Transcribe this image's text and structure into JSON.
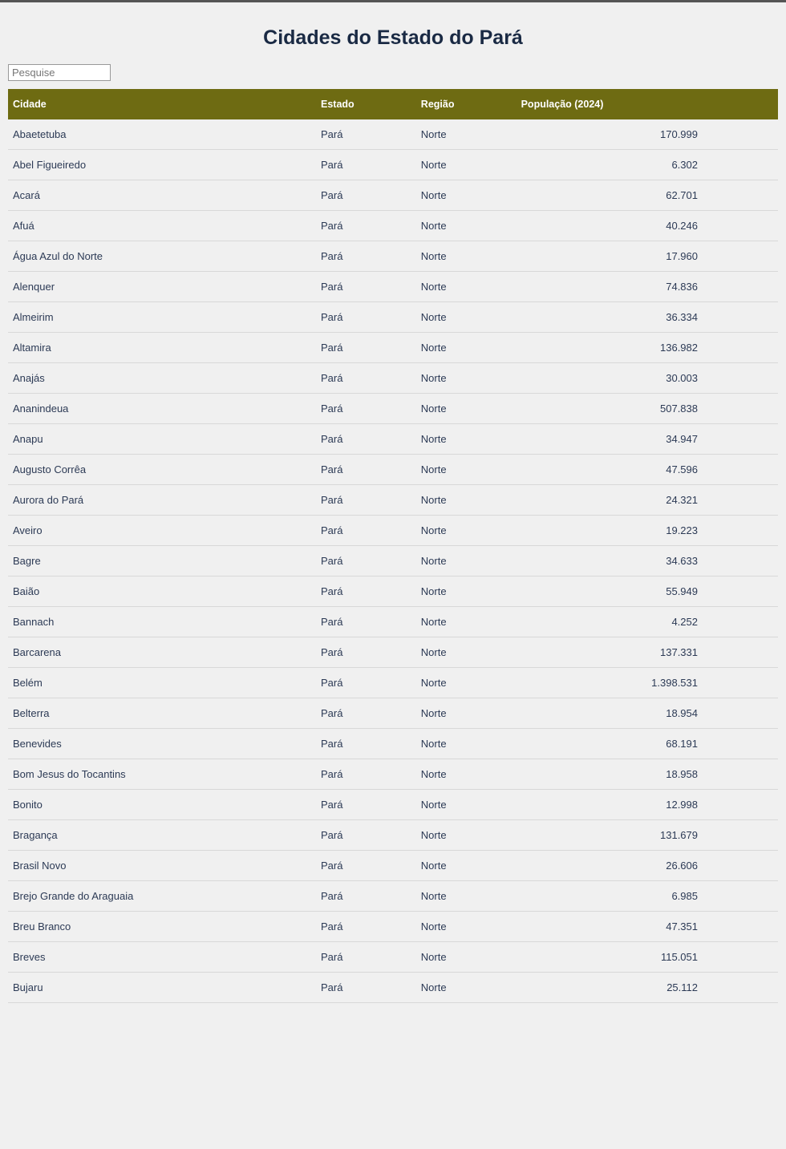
{
  "page": {
    "title": "Cidades do Estado do Pará",
    "search_placeholder": "Pesquise"
  },
  "table": {
    "header_bg": "#6e6b12",
    "header_text_color": "#ffffff",
    "row_text_color": "#2c3a55",
    "border_color": "#d8d8d8",
    "background_color": "#f0f0f0",
    "columns": [
      "Cidade",
      "Estado",
      "Região",
      "População (2024)"
    ],
    "rows": [
      {
        "cidade": "Abaetetuba",
        "estado": "Pará",
        "regiao": "Norte",
        "pop": "170.999"
      },
      {
        "cidade": "Abel Figueiredo",
        "estado": "Pará",
        "regiao": "Norte",
        "pop": "6.302"
      },
      {
        "cidade": "Acará",
        "estado": "Pará",
        "regiao": "Norte",
        "pop": "62.701"
      },
      {
        "cidade": "Afuá",
        "estado": "Pará",
        "regiao": "Norte",
        "pop": "40.246"
      },
      {
        "cidade": "Água Azul do Norte",
        "estado": "Pará",
        "regiao": "Norte",
        "pop": "17.960"
      },
      {
        "cidade": "Alenquer",
        "estado": "Pará",
        "regiao": "Norte",
        "pop": "74.836"
      },
      {
        "cidade": "Almeirim",
        "estado": "Pará",
        "regiao": "Norte",
        "pop": "36.334"
      },
      {
        "cidade": "Altamira",
        "estado": "Pará",
        "regiao": "Norte",
        "pop": "136.982"
      },
      {
        "cidade": "Anajás",
        "estado": "Pará",
        "regiao": "Norte",
        "pop": "30.003"
      },
      {
        "cidade": "Ananindeua",
        "estado": "Pará",
        "regiao": "Norte",
        "pop": "507.838"
      },
      {
        "cidade": "Anapu",
        "estado": "Pará",
        "regiao": "Norte",
        "pop": "34.947"
      },
      {
        "cidade": "Augusto Corrêa",
        "estado": "Pará",
        "regiao": "Norte",
        "pop": "47.596"
      },
      {
        "cidade": "Aurora do Pará",
        "estado": "Pará",
        "regiao": "Norte",
        "pop": "24.321"
      },
      {
        "cidade": "Aveiro",
        "estado": "Pará",
        "regiao": "Norte",
        "pop": "19.223"
      },
      {
        "cidade": "Bagre",
        "estado": "Pará",
        "regiao": "Norte",
        "pop": "34.633"
      },
      {
        "cidade": "Baião",
        "estado": "Pará",
        "regiao": "Norte",
        "pop": "55.949"
      },
      {
        "cidade": "Bannach",
        "estado": "Pará",
        "regiao": "Norte",
        "pop": "4.252"
      },
      {
        "cidade": "Barcarena",
        "estado": "Pará",
        "regiao": "Norte",
        "pop": "137.331"
      },
      {
        "cidade": "Belém",
        "estado": "Pará",
        "regiao": "Norte",
        "pop": "1.398.531"
      },
      {
        "cidade": "Belterra",
        "estado": "Pará",
        "regiao": "Norte",
        "pop": "18.954"
      },
      {
        "cidade": "Benevides",
        "estado": "Pará",
        "regiao": "Norte",
        "pop": "68.191"
      },
      {
        "cidade": "Bom Jesus do Tocantins",
        "estado": "Pará",
        "regiao": "Norte",
        "pop": "18.958"
      },
      {
        "cidade": "Bonito",
        "estado": "Pará",
        "regiao": "Norte",
        "pop": "12.998"
      },
      {
        "cidade": "Bragança",
        "estado": "Pará",
        "regiao": "Norte",
        "pop": "131.679"
      },
      {
        "cidade": "Brasil Novo",
        "estado": "Pará",
        "regiao": "Norte",
        "pop": "26.606"
      },
      {
        "cidade": "Brejo Grande do Araguaia",
        "estado": "Pará",
        "regiao": "Norte",
        "pop": "6.985"
      },
      {
        "cidade": "Breu Branco",
        "estado": "Pará",
        "regiao": "Norte",
        "pop": "47.351"
      },
      {
        "cidade": "Breves",
        "estado": "Pará",
        "regiao": "Norte",
        "pop": "115.051"
      },
      {
        "cidade": "Bujaru",
        "estado": "Pará",
        "regiao": "Norte",
        "pop": "25.112"
      }
    ]
  }
}
